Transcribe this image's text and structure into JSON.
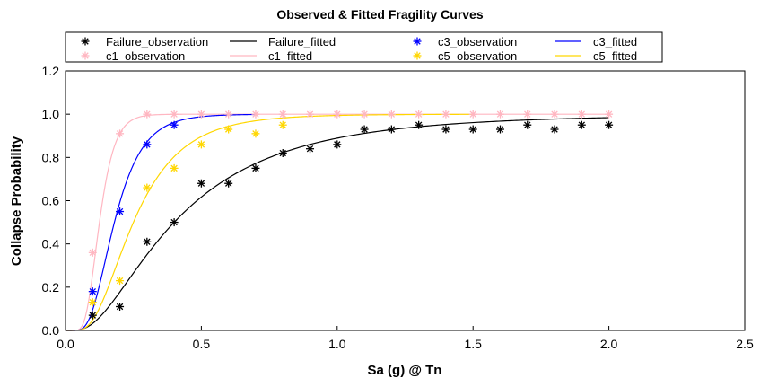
{
  "chart_data": {
    "type": "scatter",
    "title": "Observed & Fitted Fragility Curves",
    "xlabel": "Sa (g) @ Tn",
    "ylabel": "Collapse Probability",
    "xlim": [
      0,
      2.5
    ],
    "ylim": [
      0,
      1.2
    ],
    "xticks": [
      "0.0",
      "0.5",
      "1.0",
      "1.5",
      "2.0",
      "2.5"
    ],
    "yticks": [
      "0.0",
      "0.2",
      "0.4",
      "0.6",
      "0.8",
      "1.0",
      "1.2"
    ],
    "grid": false,
    "legend_position": "top",
    "observations": [
      {
        "name": "Failure_observation",
        "color": "#000000",
        "x": [
          0.1,
          0.2,
          0.3,
          0.4,
          0.5,
          0.6,
          0.7,
          0.8,
          0.9,
          1.0,
          1.1,
          1.2,
          1.3,
          1.4,
          1.5,
          1.6,
          1.7,
          1.8,
          1.9,
          2.0
        ],
        "y": [
          0.07,
          0.11,
          0.41,
          0.5,
          0.68,
          0.68,
          0.75,
          0.82,
          0.84,
          0.86,
          0.93,
          0.93,
          0.95,
          0.93,
          0.93,
          0.93,
          0.95,
          0.93,
          0.95,
          0.95
        ]
      },
      {
        "name": "c1_observation",
        "color": "#ffb6c1",
        "x": [
          0.1,
          0.2,
          0.3,
          0.4,
          0.5,
          0.6,
          0.7,
          0.8,
          0.9,
          1.0,
          1.1,
          1.2,
          1.3,
          1.4,
          1.5,
          1.6,
          1.7,
          1.8,
          1.9,
          2.0
        ],
        "y": [
          0.36,
          0.91,
          1.0,
          1.0,
          1.0,
          1.0,
          1.0,
          1.0,
          1.0,
          1.0,
          1.0,
          1.0,
          1.0,
          1.0,
          1.0,
          1.0,
          1.0,
          1.0,
          1.0,
          1.0
        ]
      },
      {
        "name": "c3_observation",
        "color": "#0000ff",
        "x": [
          0.1,
          0.2,
          0.3,
          0.4
        ],
        "y": [
          0.18,
          0.55,
          0.86,
          0.95
        ]
      },
      {
        "name": "c5_observation",
        "color": "#ffd700",
        "x": [
          0.1,
          0.2,
          0.3,
          0.4,
          0.5,
          0.6,
          0.7,
          0.8
        ],
        "y": [
          0.13,
          0.23,
          0.66,
          0.75,
          0.86,
          0.93,
          0.91,
          0.95
        ]
      }
    ],
    "fitted": [
      {
        "name": "Failure_fitted",
        "color": "#000000",
        "median": 0.4,
        "beta": 0.75,
        "xmax": 2.0
      },
      {
        "name": "c1_fitted",
        "color": "#ffb6c1",
        "median": 0.125,
        "beta": 0.35,
        "xmax": 2.0
      },
      {
        "name": "c3_fitted",
        "color": "#0000ff",
        "median": 0.18,
        "beta": 0.45,
        "xmax": 0.7
      },
      {
        "name": "c5_fitted",
        "color": "#ffd700",
        "median": 0.25,
        "beta": 0.55,
        "xmax": 1.5
      }
    ],
    "legend": [
      {
        "name": "Failure_observation",
        "kind": "marker",
        "color": "#000000"
      },
      {
        "name": "Failure_fitted",
        "kind": "line",
        "color": "#000000"
      },
      {
        "name": "c1_observation",
        "kind": "marker",
        "color": "#ffb6c1"
      },
      {
        "name": "c1_fitted",
        "kind": "line",
        "color": "#ffb6c1"
      },
      {
        "name": "c3_observation",
        "kind": "marker",
        "color": "#0000ff"
      },
      {
        "name": "c3_fitted",
        "kind": "line",
        "color": "#0000ff"
      },
      {
        "name": "c5_observation",
        "kind": "marker",
        "color": "#ffd700"
      },
      {
        "name": "c5_fitted",
        "kind": "line",
        "color": "#ffd700"
      }
    ]
  }
}
